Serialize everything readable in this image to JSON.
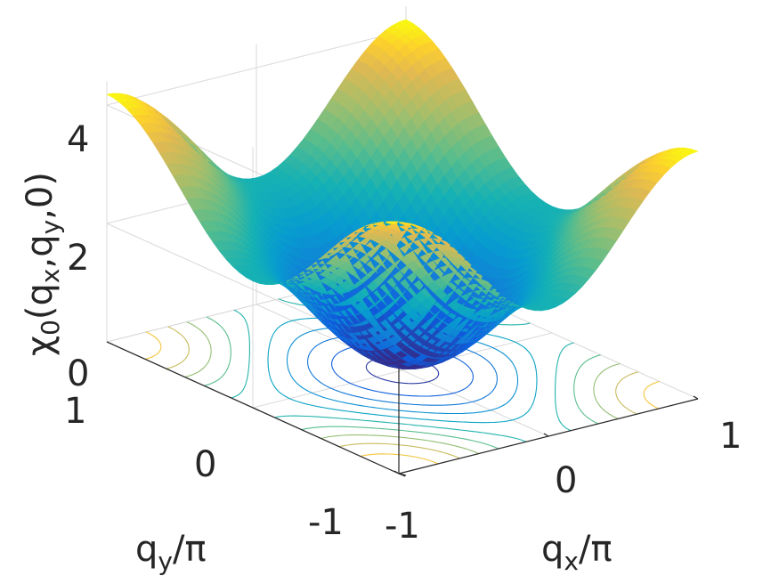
{
  "chart_data": {
    "type": "surface3d",
    "description_free": true,
    "z_label": {
      "main": "χ",
      "sub0": "0",
      "open": "(q",
      "subx": "x",
      "comma": ",q",
      "suby": "y",
      "close": ",0)"
    },
    "x_label": {
      "main": "q",
      "sub": "x",
      "rest": "/π"
    },
    "y_label": {
      "main": "q",
      "sub": "y",
      "rest": "/π"
    },
    "x_ticks": [
      "-1",
      "0",
      "1"
    ],
    "y_ticks": [
      "-1",
      "0",
      "1"
    ],
    "z_ticks": [
      "0",
      "2",
      "4"
    ],
    "x_range": [
      -1,
      1
    ],
    "y_range": [
      -1,
      1
    ],
    "z_range": [
      0,
      4
    ],
    "surface_formula": "z = 2 - cos(pi*x) - cos(pi*y) shaped bowl, min at center, max at corners",
    "z_min": 0.1,
    "z_max_corner": 4.2,
    "z_max_edge_mid": 2.0,
    "colormap": "parula",
    "contour_on_floor": true,
    "grid": true
  }
}
